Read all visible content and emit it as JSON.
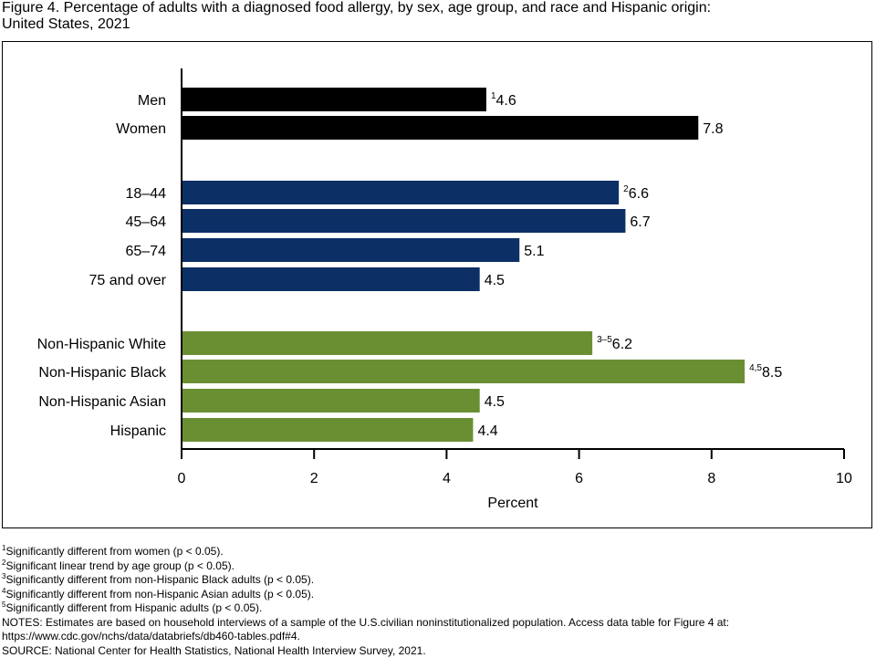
{
  "title_line1": "Figure 4. Percentage of adults with a diagnosed food allergy, by sex, age group, and race and Hispanic origin:",
  "title_line2": "United States, 2021",
  "chart_data": {
    "type": "bar",
    "orientation": "horizontal",
    "xlabel": "Percent",
    "xlim": [
      0,
      10
    ],
    "xticks": [
      0,
      2,
      4,
      6,
      8,
      10
    ],
    "grid": false,
    "groups": [
      {
        "color": "#000000",
        "categories": [
          "Men",
          "Women"
        ],
        "values": [
          4.6,
          7.8
        ],
        "labels": [
          "4.6",
          "7.8"
        ],
        "superscripts": [
          "1",
          ""
        ]
      },
      {
        "color": "#0c2f66",
        "categories": [
          "18–44",
          "45–64",
          "65–74",
          "75 and over"
        ],
        "values": [
          6.6,
          6.7,
          5.1,
          4.5
        ],
        "labels": [
          "6.6",
          "6.7",
          "5.1",
          "4.5"
        ],
        "superscripts": [
          "2",
          "",
          "",
          ""
        ]
      },
      {
        "color": "#6a8f33",
        "categories": [
          "Non-Hispanic White",
          "Non-Hispanic Black",
          "Non-Hispanic Asian",
          "Hispanic"
        ],
        "values": [
          6.2,
          8.5,
          4.5,
          4.4
        ],
        "labels": [
          "6.2",
          "8.5",
          "4.5",
          "4.4"
        ],
        "superscripts": [
          "3–5",
          "4,5",
          "",
          ""
        ]
      }
    ]
  },
  "footnotes": [
    {
      "sup": "1",
      "text": "Significantly different from women (p < 0.05)."
    },
    {
      "sup": "2",
      "text": "Significant linear trend by age group (p < 0.05)."
    },
    {
      "sup": "3",
      "text": "Significantly different from non-Hispanic Black adults (p < 0.05)."
    },
    {
      "sup": "4",
      "text": "Significantly different from non-Hispanic Asian adults (p < 0.05)."
    },
    {
      "sup": "5",
      "text": "Significantly different from Hispanic adults (p < 0.05)."
    }
  ],
  "notes_line1": "NOTES: Estimates are based on household interviews of a sample of the U.S.civilian noninstitutionalized population. Access data table for Figure 4 at:",
  "notes_line2": "https://www.cdc.gov/nchs/data/databriefs/db460-tables.pdf#4.",
  "source": "SOURCE: National Center for Health Statistics, National Health Interview Survey, 2021."
}
